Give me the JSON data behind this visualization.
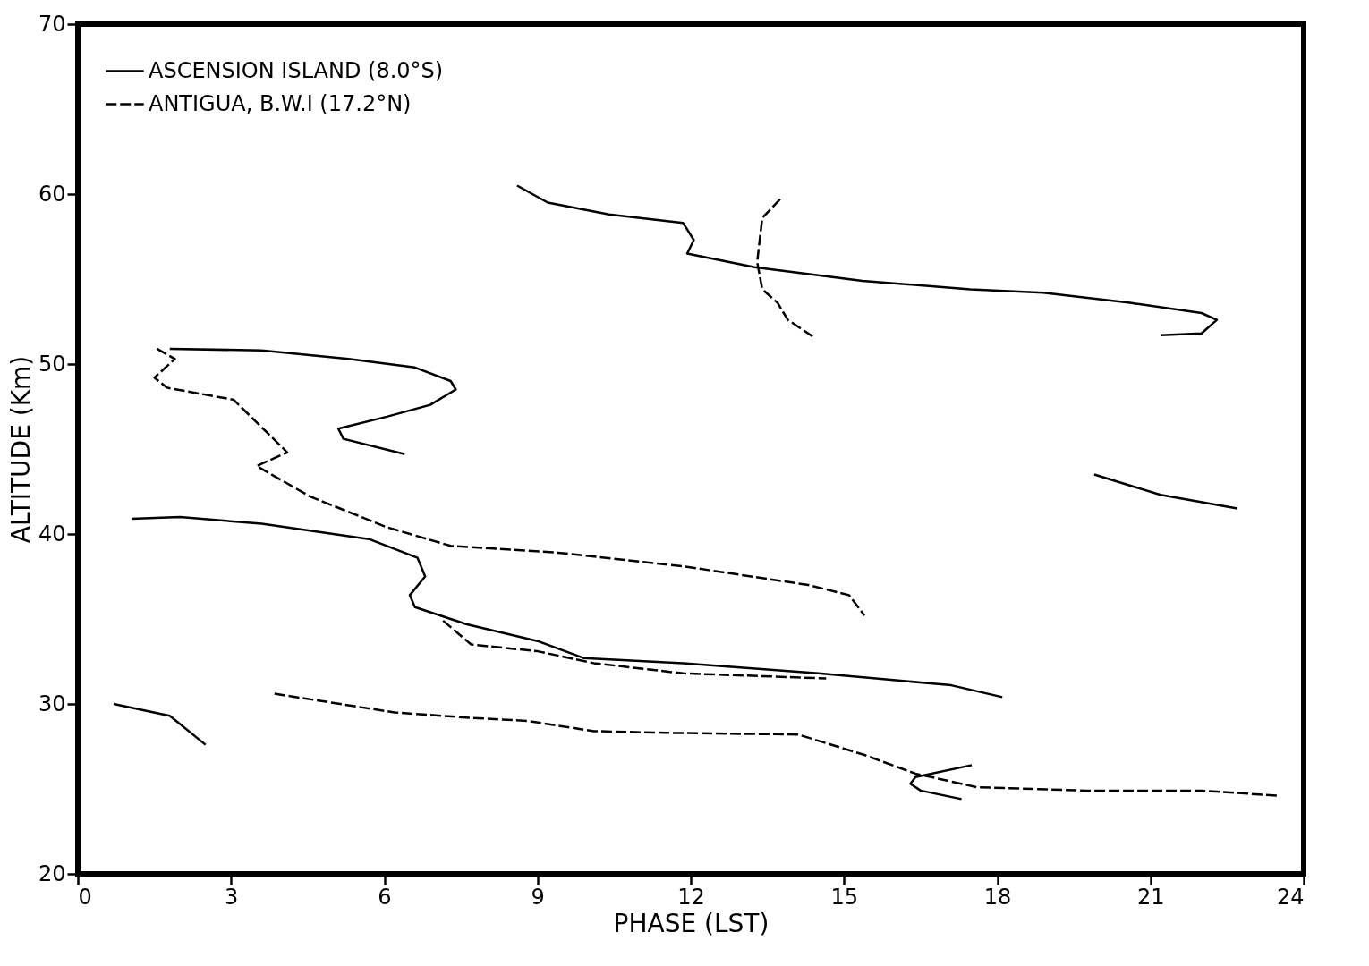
{
  "chart_data": {
    "type": "line",
    "xlabel": "PHASE (LST)",
    "ylabel": "ALTITUDE (Km)",
    "xlim": [
      0,
      24
    ],
    "ylim": [
      20,
      70
    ],
    "xticks": [
      0,
      3,
      6,
      9,
      12,
      15,
      18,
      21,
      24
    ],
    "yticks": [
      20,
      30,
      40,
      50,
      60,
      70
    ],
    "grid": false,
    "legend": "top left",
    "marker": "none",
    "series": [
      {
        "name": "ASCENSION ISLAND (8.0°S)",
        "color": "#000000",
        "line_style": "solid",
        "x": [
          8.6,
          9.2,
          10.4,
          11.85,
          12.06,
          11.93,
          13.25,
          15.36,
          17.47,
          18.9,
          20.6,
          22.0,
          22.3,
          22.0,
          21.2,
          null,
          1.8,
          3.6,
          5.3,
          6.6,
          7.3,
          7.4,
          6.9,
          6.05,
          5.1,
          5.2,
          6.4,
          null,
          1.05,
          2.0,
          3.6,
          5.7,
          6.65,
          6.8,
          6.5,
          6.6,
          7.6,
          9.0,
          9.9,
          11.85,
          14.5,
          17.1,
          18.1,
          null,
          0.7,
          1.8,
          2.5,
          null,
          19.9,
          21.2,
          22.7,
          null,
          17.5,
          16.4,
          16.3,
          16.5,
          17.3
        ],
        "values": [
          60.5,
          59.5,
          58.8,
          58.3,
          57.3,
          56.5,
          55.7,
          54.9,
          54.4,
          54.2,
          53.6,
          53.0,
          52.6,
          51.8,
          51.7,
          null,
          50.9,
          50.8,
          50.3,
          49.8,
          49.0,
          48.5,
          47.6,
          46.9,
          46.2,
          45.6,
          44.7,
          null,
          40.9,
          41.0,
          40.6,
          39.7,
          38.6,
          37.5,
          36.4,
          35.7,
          34.7,
          33.7,
          32.7,
          32.4,
          31.8,
          31.1,
          30.4,
          null,
          30.0,
          29.3,
          27.6,
          null,
          43.5,
          42.3,
          41.5,
          null,
          26.4,
          25.7,
          25.3,
          24.9,
          24.4
        ]
      },
      {
        "name": "ANTIGUA, B.W.I (17.2°N)",
        "color": "#000000",
        "line_style": "dashed",
        "x": [
          13.75,
          13.4,
          13.3,
          13.4,
          13.7,
          13.9,
          14.4,
          null,
          1.55,
          1.9,
          1.5,
          1.75,
          3.05,
          4.1,
          3.5,
          4.55,
          6.05,
          7.3,
          9.4,
          11.85,
          14.3,
          15.1,
          15.4,
          null,
          7.15,
          7.7,
          9.0,
          10.1,
          11.85,
          14.65,
          null,
          3.85,
          6.2,
          7.6,
          8.8,
          10.1,
          11.5,
          14.1,
          15.4,
          16.4,
          17.6,
          19.75,
          22.0,
          23.5
        ],
        "values": [
          59.7,
          58.6,
          56.0,
          54.4,
          53.6,
          52.6,
          51.6,
          null,
          50.9,
          50.3,
          49.2,
          48.6,
          47.9,
          44.8,
          44.0,
          42.2,
          40.4,
          39.3,
          38.9,
          38.1,
          37.0,
          36.4,
          35.2,
          null,
          34.9,
          33.5,
          33.1,
          32.4,
          31.8,
          31.5,
          null,
          30.6,
          29.5,
          29.2,
          29.0,
          28.4,
          28.3,
          28.2,
          27.0,
          25.9,
          25.1,
          24.9,
          24.9,
          24.6
        ]
      }
    ]
  }
}
